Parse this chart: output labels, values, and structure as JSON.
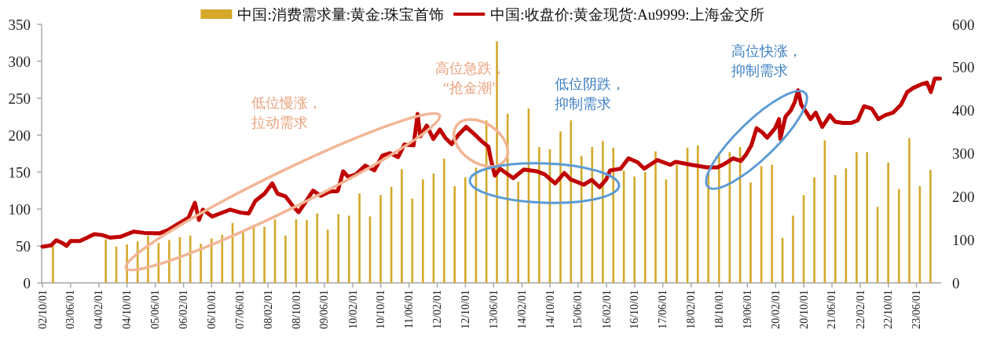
{
  "chart_data": {
    "type": "bar",
    "xlim": [
      "2002-10-01",
      "2023-12-31"
    ],
    "xticks": [
      {
        "value": "2002-10-01",
        "label": "02/10/01"
      },
      {
        "value": "2003-06-01",
        "label": "03/06/01"
      },
      {
        "value": "2004-02-01",
        "label": "04/02/01"
      },
      {
        "value": "2004-10-01",
        "label": "04/10/01"
      },
      {
        "value": "2005-06-01",
        "label": "05/06/01"
      },
      {
        "value": "2006-02-01",
        "label": "06/02/01"
      },
      {
        "value": "2006-10-01",
        "label": "06/10/01"
      },
      {
        "value": "2007-06-01",
        "label": "07/06/01"
      },
      {
        "value": "2008-02-01",
        "label": "08/02/01"
      },
      {
        "value": "2008-10-01",
        "label": "08/10/01"
      },
      {
        "value": "2009-06-01",
        "label": "09/06/01"
      },
      {
        "value": "2010-02-01",
        "label": "10/02/01"
      },
      {
        "value": "2010-10-01",
        "label": "10/10/01"
      },
      {
        "value": "2011-06-01",
        "label": "11/06/01"
      },
      {
        "value": "2012-02-01",
        "label": "12/02/01"
      },
      {
        "value": "2012-10-01",
        "label": "12/10/01"
      },
      {
        "value": "2013-06-01",
        "label": "13/06/01"
      },
      {
        "value": "2014-02-01",
        "label": "14/02/01"
      },
      {
        "value": "2014-10-01",
        "label": "14/10/01"
      },
      {
        "value": "2015-06-01",
        "label": "15/06/01"
      },
      {
        "value": "2016-02-01",
        "label": "16/02/01"
      },
      {
        "value": "2016-10-01",
        "label": "16/10/01"
      },
      {
        "value": "2017-06-01",
        "label": "17/06/01"
      },
      {
        "value": "2018-02-01",
        "label": "18/02/01"
      },
      {
        "value": "2018-10-01",
        "label": "18/10/01"
      },
      {
        "value": "2019-06-01",
        "label": "19/06/01"
      },
      {
        "value": "2020-02-01",
        "label": "20/02/01"
      },
      {
        "value": "2020-10-01",
        "label": "20/10/01"
      },
      {
        "value": "2021-06-01",
        "label": "21/06/01"
      },
      {
        "value": "2022-02-01",
        "label": "22/02/01"
      },
      {
        "value": "2022-10-01",
        "label": "22/10/01"
      },
      {
        "value": "2023-06-01",
        "label": "23/06/01"
      }
    ],
    "ylim": [
      0,
      350
    ],
    "yticks": [
      0,
      50,
      100,
      150,
      200,
      250,
      300,
      350
    ],
    "y2lim": [
      0,
      600
    ],
    "y2ticks": [
      0,
      100,
      200,
      300,
      400,
      500,
      600
    ],
    "legend": "top",
    "series": [
      {
        "name": "中国:消费需求量:黄金:珠宝首饰",
        "color": "#d5a82a",
        "x": [
          "2002-12-31",
          "2004-03-31",
          "2004-06-30",
          "2004-09-30",
          "2004-12-31",
          "2005-03-31",
          "2005-06-30",
          "2005-09-30",
          "2005-12-31",
          "2006-03-31",
          "2006-06-30",
          "2006-09-30",
          "2006-12-31",
          "2007-03-31",
          "2007-06-30",
          "2007-09-30",
          "2007-12-31",
          "2008-03-31",
          "2008-06-30",
          "2008-09-30",
          "2008-12-31",
          "2009-03-31",
          "2009-06-30",
          "2009-09-30",
          "2009-12-31",
          "2010-03-31",
          "2010-06-30",
          "2010-09-30",
          "2010-12-31",
          "2011-03-31",
          "2011-06-30",
          "2011-09-30",
          "2011-12-31",
          "2012-03-31",
          "2012-06-30",
          "2012-09-30",
          "2012-12-31",
          "2013-03-31",
          "2013-06-30",
          "2013-09-30",
          "2013-12-31",
          "2014-03-31",
          "2014-06-30",
          "2014-09-30",
          "2014-12-31",
          "2015-03-31",
          "2015-06-30",
          "2015-09-30",
          "2015-12-31",
          "2016-03-31",
          "2016-06-30",
          "2016-09-30",
          "2016-12-31",
          "2017-03-31",
          "2017-06-30",
          "2017-09-30",
          "2017-12-31",
          "2018-03-31",
          "2018-06-30",
          "2018-09-30",
          "2018-12-31",
          "2019-03-31",
          "2019-06-30",
          "2019-09-30",
          "2019-12-31",
          "2020-03-31",
          "2020-06-30",
          "2020-09-30",
          "2020-12-31",
          "2021-03-31",
          "2021-06-30",
          "2021-09-30",
          "2021-12-31",
          "2022-03-31",
          "2022-06-30",
          "2022-09-30",
          "2022-12-31",
          "2023-03-31",
          "2023-06-30",
          "2023-09-30"
        ],
        "values": [
          50,
          59,
          49,
          52,
          56,
          64,
          54,
          58,
          62,
          64,
          53,
          60,
          65,
          81,
          70,
          78,
          76,
          86,
          64,
          86,
          85,
          94,
          72,
          93,
          91,
          121,
          90,
          119,
          130,
          154,
          114,
          140,
          148,
          168,
          131,
          143,
          156,
          220,
          327,
          229,
          137,
          236,
          184,
          181,
          205,
          220,
          172,
          184,
          192,
          183,
          152,
          144,
          150,
          178,
          140,
          160,
          183,
          186,
          149,
          176,
          177,
          184,
          136,
          158,
          160,
          61,
          91,
          119,
          143,
          193,
          146,
          155,
          177,
          177,
          103,
          163,
          127,
          196,
          131,
          153
        ]
      },
      {
        "name": "中国:收盘价:黄金现货:Au9999:上海金交所",
        "type": "line",
        "axis": "y2",
        "color": "#c00000",
        "x": [
          "2002-10-01",
          "2002-12-15",
          "2003-01-29",
          "2003-03-25",
          "2003-04-28",
          "2003-06-01",
          "2003-08-20",
          "2003-10-15",
          "2003-12-22",
          "2004-02-28",
          "2004-05-06",
          "2004-08-05",
          "2004-11-27",
          "2005-02-26",
          "2005-07-09",
          "2005-09-16",
          "2005-12-16",
          "2006-03-15",
          "2006-05-10",
          "2006-06-14",
          "2006-07-17",
          "2006-10-05",
          "2006-12-12",
          "2007-03-11",
          "2007-06-10",
          "2007-08-17",
          "2007-10-13",
          "2008-01-01",
          "2008-03-08",
          "2008-04-22",
          "2008-06-29",
          "2008-09-06",
          "2008-10-21",
          "2008-12-16",
          "2009-02-23",
          "2009-05-01",
          "2009-07-18",
          "2009-09-25",
          "2009-11-10",
          "2009-12-24",
          "2010-03-01",
          "2010-05-19",
          "2010-08-07",
          "2010-10-14",
          "2010-12-21",
          "2011-02-28",
          "2011-04-23",
          "2011-07-11",
          "2011-08-15",
          "2011-09-06",
          "2011-11-02",
          "2011-12-29",
          "2012-02-24",
          "2012-04-09",
          "2012-06-04",
          "2012-07-30",
          "2012-10-07",
          "2012-12-14",
          "2013-02-21",
          "2013-04-17",
          "2013-05-09",
          "2013-06-12",
          "2013-07-27",
          "2013-11-18",
          "2014-02-17",
          "2014-06-09",
          "2014-08-16",
          "2014-11-15",
          "2015-02-02",
          "2015-03-29",
          "2015-07-20",
          "2015-09-27",
          "2015-12-03",
          "2016-01-30",
          "2016-03-03",
          "2016-06-02",
          "2016-08-09",
          "2016-10-27",
          "2016-12-23",
          "2017-04-14",
          "2017-08-05",
          "2017-09-20",
          "2018-02-03",
          "2018-06-17",
          "2018-09-16",
          "2018-11-01",
          "2019-01-30",
          "2019-04-07",
          "2019-05-22",
          "2019-07-06",
          "2019-08-20",
          "2019-10-05",
          "2019-11-20",
          "2020-01-27",
          "2020-03-01",
          "2020-03-12",
          "2020-04-26",
          "2020-06-10",
          "2020-07-14",
          "2020-08-13",
          "2020-09-09",
          "2020-10-25",
          "2020-11-28",
          "2021-01-12",
          "2021-03-09",
          "2021-05-15",
          "2021-06-29",
          "2021-09-06",
          "2021-11-13",
          "2022-01-09",
          "2022-03-05",
          "2022-05-12",
          "2022-07-07",
          "2022-09-03",
          "2022-11-10",
          "2023-01-17",
          "2023-03-13",
          "2023-05-08",
          "2023-07-15",
          "2023-08-30",
          "2023-10-03",
          "2023-11-06",
          "2023-12-21"
        ],
        "values": [
          84,
          87,
          99,
          92,
          86,
          97,
          97,
          104,
          113,
          111,
          105,
          107,
          119,
          116,
          115,
          122,
          137,
          151,
          186,
          146,
          170,
          154,
          161,
          170,
          163,
          161,
          190,
          207,
          231,
          207,
          201,
          177,
          164,
          186,
          214,
          202,
          212,
          213,
          259,
          246,
          252,
          272,
          261,
          295,
          301,
          292,
          321,
          319,
          392,
          340,
          365,
          334,
          356,
          337,
          322,
          343,
          362,
          346,
          328,
          316,
          286,
          249,
          265,
          243,
          263,
          259,
          252,
          231,
          255,
          240,
          228,
          239,
          222,
          240,
          261,
          265,
          289,
          280,
          265,
          285,
          274,
          281,
          274,
          268,
          268,
          274,
          289,
          283,
          298,
          319,
          359,
          350,
          337,
          359,
          380,
          334,
          386,
          400,
          419,
          447,
          413,
          395,
          380,
          395,
          362,
          389,
          374,
          371,
          371,
          377,
          410,
          404,
          380,
          389,
          395,
          413,
          443,
          453,
          461,
          465,
          443,
          474,
          474
        ]
      }
    ],
    "annotations": [
      "低位慢涨，拉动需求",
      "高位急跌，“抢金潮”",
      "低位阴跌，抑制需求",
      "高位快涨，抑制需求"
    ]
  }
}
